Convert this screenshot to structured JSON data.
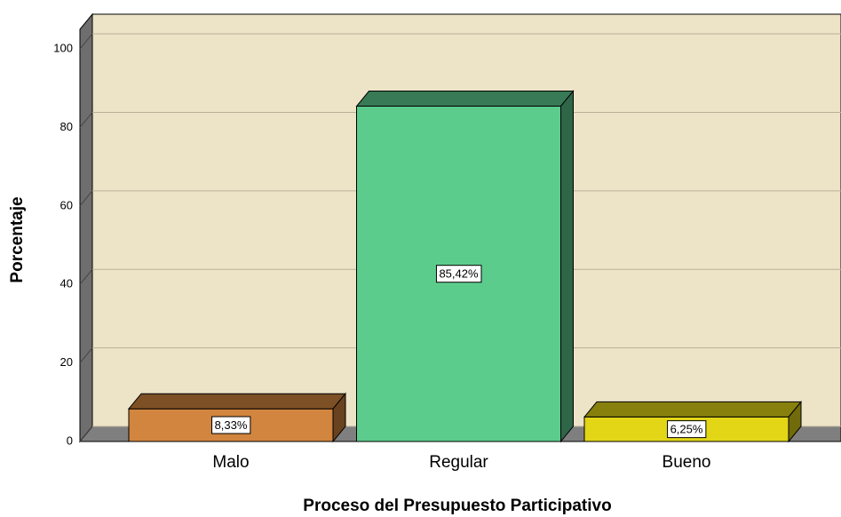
{
  "chart_data": {
    "type": "bar3d",
    "x_label": "Proceso del Presupuesto Participativo",
    "y_label": "Porcentaje",
    "categories": [
      "Malo",
      "Regular",
      "Bueno"
    ],
    "values": [
      8.33,
      85.42,
      6.25
    ],
    "value_labels": [
      "8,33%",
      "85,42%",
      "6,25%"
    ],
    "colors": [
      "#d1853e",
      "#5ccc8d",
      "#e2d616"
    ],
    "ylim": [
      0,
      105
    ],
    "yticks": [
      0,
      20,
      40,
      60,
      80,
      100
    ],
    "grid": true
  }
}
